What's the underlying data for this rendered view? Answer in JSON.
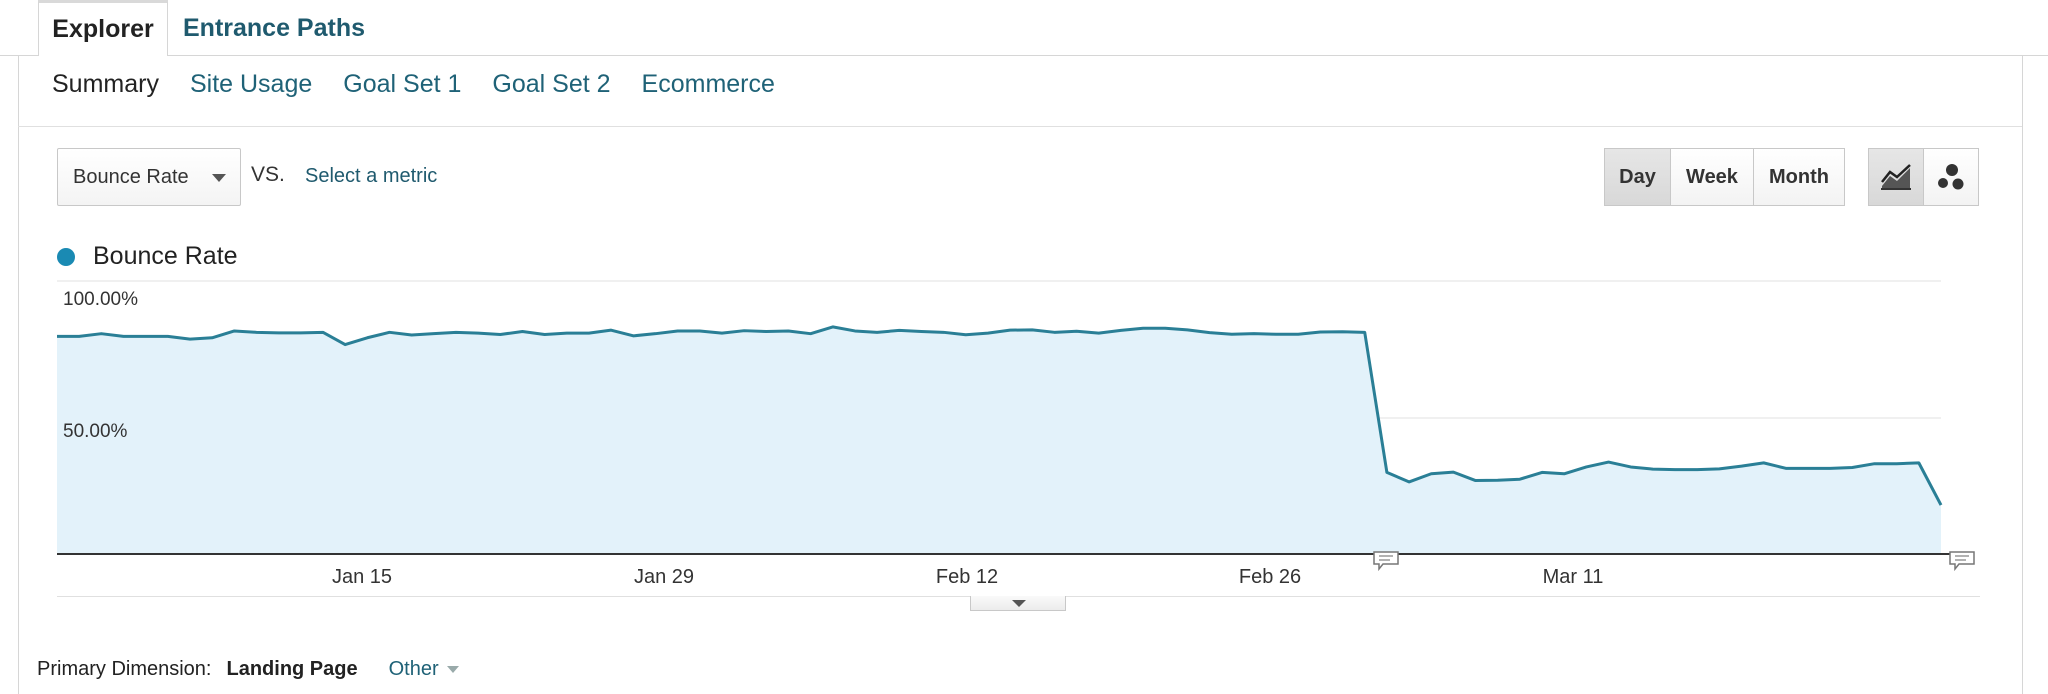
{
  "tabs": [
    {
      "label": "Explorer",
      "active": true
    },
    {
      "label": "Entrance Paths",
      "active": false
    }
  ],
  "subnav": [
    "Summary",
    "Site Usage",
    "Goal Set 1",
    "Goal Set 2",
    "Ecommerce"
  ],
  "controls": {
    "metric_selected": "Bounce Rate",
    "vs_label": "VS.",
    "select_metric": "Select a metric",
    "period_buttons": [
      "Day",
      "Week",
      "Month"
    ],
    "period_active": "Day",
    "chart_type_icons": [
      "line-chart-icon",
      "motion-chart-icon"
    ]
  },
  "legend": {
    "label": "Bounce Rate",
    "color": "#1a8ab3"
  },
  "chart_data": {
    "type": "area",
    "x_tick_labels": [
      "Jan 15",
      "Jan 29",
      "Feb 12",
      "Feb 26",
      "Mar 11"
    ],
    "y_tick_labels": [
      "100.00%",
      "50.00%"
    ],
    "ylim": [
      0,
      100
    ],
    "line_color": "#2a7f96",
    "fill_color": "#e3f2fa",
    "values": [
      80,
      80,
      81,
      80,
      80,
      80,
      79,
      79.5,
      82,
      81.5,
      81.3,
      81.3,
      81.5,
      77,
      79.5,
      81.5,
      80.5,
      81,
      81.5,
      81.2,
      80.7,
      81.8,
      80.7,
      81.2,
      81.2,
      82.3,
      80.2,
      81,
      82,
      82,
      81.2,
      82.1,
      81.8,
      82,
      81,
      83.5,
      82,
      81.5,
      82.2,
      81.8,
      81.5,
      80.6,
      81.2,
      82.3,
      82.4,
      81.5,
      81.9,
      81.2,
      82.2,
      83,
      83,
      82.4,
      81.4,
      80.8,
      81,
      80.8,
      80.8,
      81.6,
      81.7,
      81.5,
      30,
      26.5,
      29.5,
      30.1,
      27,
      27.1,
      27.5,
      30,
      29.5,
      32,
      33.8,
      32,
      31.2,
      31,
      31,
      31.3,
      32.3,
      33.5,
      31.5,
      31.5,
      31.5,
      31.8,
      33.2,
      33.2,
      33.5,
      18
    ],
    "annotation_markers": 2
  },
  "footer": {
    "primary_dimension_label": "Primary Dimension:",
    "primary_dimension_value": "Landing Page",
    "other_label": "Other"
  }
}
